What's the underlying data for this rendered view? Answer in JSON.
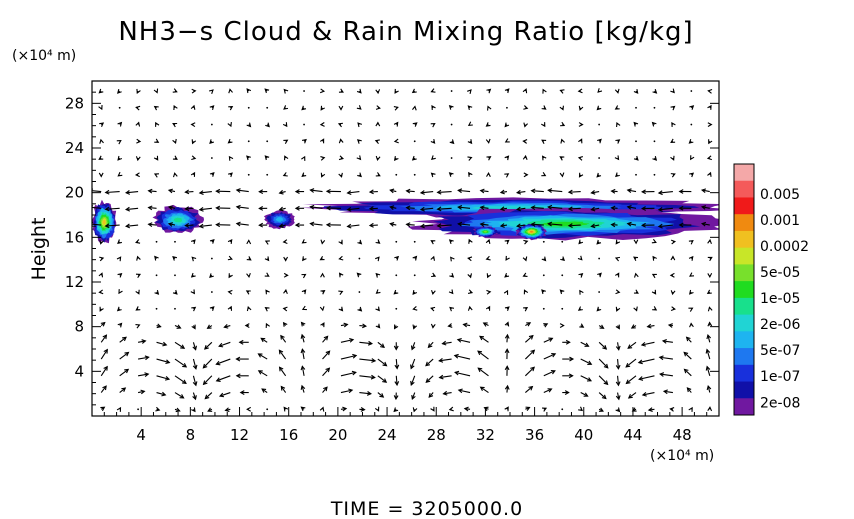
{
  "chart_data": {
    "type": "heatmap",
    "title": "NH3−s Cloud & Rain Mixing Ratio [kg/kg]",
    "ylabel": "Height",
    "y_unit": "(×10⁴ m)",
    "x_unit": "(×10⁴ m)",
    "footer": "TIME = 3205000.0",
    "xlim": [
      0,
      51
    ],
    "ylim": [
      0,
      30
    ],
    "x_ticks": [
      4,
      8,
      12,
      16,
      20,
      24,
      28,
      32,
      36,
      40,
      44,
      48
    ],
    "y_ticks": [
      4,
      8,
      12,
      16,
      20,
      24,
      28
    ],
    "colorbar": {
      "labels": [
        "0.005",
        "0.001",
        "0.0002",
        "5e-05",
        "1e-05",
        "2e-06",
        "5e-07",
        "1e-07",
        "2e-08"
      ],
      "colors": [
        "#f4a8a8",
        "#f45a5a",
        "#f01a1a",
        "#f08a10",
        "#f0c020",
        "#c8e628",
        "#78e02c",
        "#20dc20",
        "#18e08c",
        "#20d4d4",
        "#1eb4f0",
        "#1e78f0",
        "#1830dc",
        "#1010a8",
        "#7018a0"
      ]
    },
    "overlay": "wind vectors",
    "cloud_patches": [
      {
        "x0": 0.0,
        "x1": 2.0,
        "y0": 15.5,
        "y1": 19.2,
        "level": 10
      },
      {
        "x0": 5.0,
        "x1": 9.0,
        "y0": 16.3,
        "y1": 18.8,
        "level": 6
      },
      {
        "x0": 14.0,
        "x1": 16.5,
        "y0": 16.8,
        "y1": 18.4,
        "level": 4
      },
      {
        "x0": 17.5,
        "x1": 51.0,
        "y0": 17.8,
        "y1": 19.5,
        "level": 5
      },
      {
        "x0": 26.0,
        "x1": 51.0,
        "y0": 15.8,
        "y1": 18.6,
        "level": 7
      },
      {
        "x0": 34.5,
        "x1": 37.0,
        "y0": 15.8,
        "y1": 17.2,
        "level": 11
      },
      {
        "x0": 31.0,
        "x1": 33.0,
        "y0": 16.0,
        "y1": 17.0,
        "level": 8
      }
    ]
  }
}
